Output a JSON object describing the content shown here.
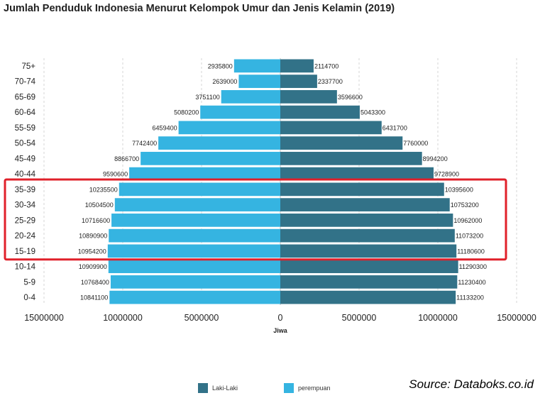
{
  "chart_data": {
    "type": "bar",
    "orientation": "horizontal-diverging",
    "title": "Jumlah Penduduk Indonesia Menurut Kelompok Umur dan Jenis Kelamin (2019)",
    "xlabel": "Jiwa",
    "ylabel": "",
    "xlim": [
      -15000000,
      15000000
    ],
    "x_ticks": [
      -15000000,
      -10000000,
      -5000000,
      0,
      5000000,
      10000000,
      15000000
    ],
    "x_tick_labels": [
      "15000000",
      "10000000",
      "5000000",
      "0",
      "5000000",
      "10000000",
      "15000000"
    ],
    "categories": [
      "75+",
      "70-74",
      "65-69",
      "60-64",
      "55-59",
      "50-54",
      "45-49",
      "40-44",
      "35-39",
      "30-34",
      "25-29",
      "20-24",
      "15-19",
      "10-14",
      "5-9",
      "0-4"
    ],
    "series": [
      {
        "name": "perempuan",
        "side": "left",
        "color": "#35b4e1",
        "values": [
          2935800,
          2639000,
          3751100,
          5080200,
          6459400,
          7742400,
          8866700,
          9590600,
          10235500,
          10504500,
          10716600,
          10890900,
          10954200,
          10909900,
          10768400,
          10841100
        ]
      },
      {
        "name": "Laki-Laki",
        "side": "right",
        "color": "#327288",
        "values": [
          2114700,
          2337700,
          3596600,
          5043300,
          6431700,
          7760000,
          8994200,
          9728900,
          10395600,
          10753200,
          10962000,
          11073200,
          11180600,
          11290300,
          11230400,
          11133200
        ]
      }
    ],
    "grid": true,
    "highlight": {
      "label": "15-19 to 35-39",
      "from": "35-39",
      "to": "15-19",
      "color": "#e0202a"
    },
    "legend": {
      "placement": "bottom-center",
      "order": [
        "Laki-Laki",
        "perempuan"
      ]
    }
  },
  "source": "Source: Databoks.co.id"
}
